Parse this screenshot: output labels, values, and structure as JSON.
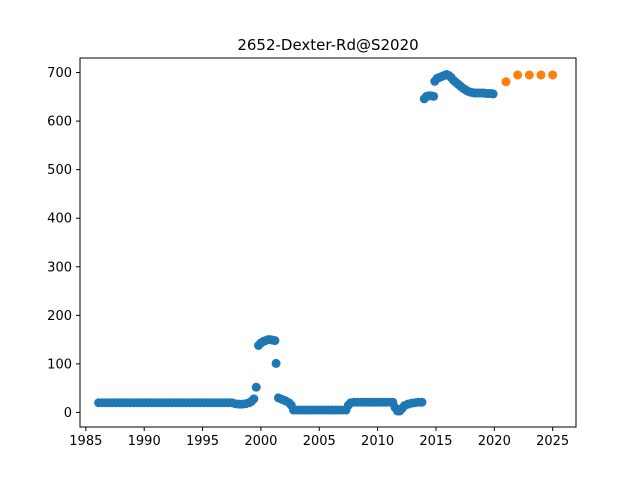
{
  "chart_data": {
    "type": "scatter",
    "title": "2652-Dexter-Rd@S2020",
    "xlabel": "",
    "ylabel": "",
    "xlim": [
      1984.5,
      2027.0
    ],
    "ylim": [
      -30,
      730
    ],
    "xticks": [
      1985,
      1990,
      1995,
      2000,
      2005,
      2010,
      2015,
      2020,
      2025
    ],
    "yticks": [
      0,
      100,
      200,
      300,
      400,
      500,
      600,
      700
    ],
    "grid": false,
    "legend": "none",
    "series": [
      {
        "color": "#1f77b4",
        "points": [
          [
            1986.1,
            20
          ],
          [
            1986.4,
            20
          ],
          [
            1986.7,
            20
          ],
          [
            1987.0,
            20
          ],
          [
            1987.3,
            20
          ],
          [
            1987.6,
            20
          ],
          [
            1987.9,
            20
          ],
          [
            1988.2,
            20
          ],
          [
            1988.5,
            20
          ],
          [
            1988.8,
            20
          ],
          [
            1989.1,
            20
          ],
          [
            1989.4,
            20
          ],
          [
            1989.7,
            20
          ],
          [
            1990.0,
            20
          ],
          [
            1990.3,
            20
          ],
          [
            1990.6,
            20
          ],
          [
            1990.9,
            20
          ],
          [
            1991.2,
            20
          ],
          [
            1991.5,
            20
          ],
          [
            1991.8,
            20
          ],
          [
            1992.1,
            20
          ],
          [
            1992.4,
            20
          ],
          [
            1992.7,
            20
          ],
          [
            1993.0,
            20
          ],
          [
            1993.3,
            20
          ],
          [
            1993.6,
            20
          ],
          [
            1993.9,
            20
          ],
          [
            1994.2,
            20
          ],
          [
            1994.5,
            20
          ],
          [
            1994.8,
            20
          ],
          [
            1995.1,
            20
          ],
          [
            1995.4,
            20
          ],
          [
            1995.7,
            20
          ],
          [
            1996.0,
            20
          ],
          [
            1996.3,
            20
          ],
          [
            1996.6,
            20
          ],
          [
            1996.9,
            20
          ],
          [
            1997.2,
            20
          ],
          [
            1997.5,
            20
          ],
          [
            1997.8,
            18
          ],
          [
            1998.1,
            17
          ],
          [
            1998.4,
            17
          ],
          [
            1998.7,
            18
          ],
          [
            1999.0,
            20
          ],
          [
            1999.2,
            23
          ],
          [
            1999.4,
            28
          ],
          [
            1999.6,
            52
          ],
          [
            1999.8,
            138
          ],
          [
            2000.0,
            143
          ],
          [
            2000.2,
            146
          ],
          [
            2000.4,
            148
          ],
          [
            2000.6,
            150
          ],
          [
            2000.8,
            150
          ],
          [
            2001.0,
            149
          ],
          [
            2001.2,
            148
          ],
          [
            2001.3,
            101
          ],
          [
            2001.5,
            30
          ],
          [
            2001.8,
            27
          ],
          [
            2002.1,
            24
          ],
          [
            2002.4,
            20
          ],
          [
            2002.6,
            15
          ],
          [
            2002.8,
            5
          ],
          [
            2003.1,
            5
          ],
          [
            2003.4,
            5
          ],
          [
            2003.7,
            5
          ],
          [
            2004.0,
            5
          ],
          [
            2004.3,
            5
          ],
          [
            2004.6,
            5
          ],
          [
            2004.9,
            5
          ],
          [
            2005.2,
            5
          ],
          [
            2005.5,
            5
          ],
          [
            2005.8,
            5
          ],
          [
            2006.1,
            5
          ],
          [
            2006.4,
            5
          ],
          [
            2006.7,
            5
          ],
          [
            2007.0,
            5
          ],
          [
            2007.3,
            5
          ],
          [
            2007.5,
            15
          ],
          [
            2007.7,
            20
          ],
          [
            2008.0,
            21
          ],
          [
            2008.3,
            21
          ],
          [
            2008.6,
            21
          ],
          [
            2008.9,
            21
          ],
          [
            2009.2,
            21
          ],
          [
            2009.5,
            21
          ],
          [
            2009.8,
            21
          ],
          [
            2010.1,
            21
          ],
          [
            2010.4,
            21
          ],
          [
            2010.7,
            21
          ],
          [
            2011.0,
            21
          ],
          [
            2011.3,
            21
          ],
          [
            2011.5,
            10
          ],
          [
            2011.7,
            3
          ],
          [
            2011.9,
            3
          ],
          [
            2012.1,
            8
          ],
          [
            2012.3,
            14
          ],
          [
            2012.6,
            17
          ],
          [
            2012.9,
            19
          ],
          [
            2013.2,
            20
          ],
          [
            2013.5,
            21
          ],
          [
            2013.8,
            21
          ],
          [
            2014.0,
            646
          ],
          [
            2014.2,
            651
          ],
          [
            2014.4,
            652
          ],
          [
            2014.6,
            652
          ],
          [
            2014.8,
            651
          ],
          [
            2014.9,
            682
          ],
          [
            2015.1,
            688
          ],
          [
            2015.3,
            690
          ],
          [
            2015.5,
            692
          ],
          [
            2015.7,
            694
          ],
          [
            2015.9,
            696
          ],
          [
            2016.1,
            694
          ],
          [
            2016.3,
            690
          ],
          [
            2016.5,
            684
          ],
          [
            2016.7,
            680
          ],
          [
            2016.9,
            676
          ],
          [
            2017.1,
            672
          ],
          [
            2017.3,
            668
          ],
          [
            2017.5,
            665
          ],
          [
            2017.7,
            662
          ],
          [
            2017.9,
            660
          ],
          [
            2018.1,
            659
          ],
          [
            2018.3,
            658
          ],
          [
            2018.5,
            658
          ],
          [
            2018.7,
            658
          ],
          [
            2018.9,
            658
          ],
          [
            2019.1,
            658
          ],
          [
            2019.3,
            657
          ],
          [
            2019.5,
            657
          ],
          [
            2019.7,
            657
          ],
          [
            2019.9,
            656
          ]
        ]
      },
      {
        "color": "#ff7f0e",
        "points": [
          [
            2021.0,
            681
          ],
          [
            2022.0,
            695
          ],
          [
            2023.0,
            695
          ],
          [
            2024.0,
            695
          ],
          [
            2025.0,
            695
          ]
        ]
      }
    ]
  }
}
